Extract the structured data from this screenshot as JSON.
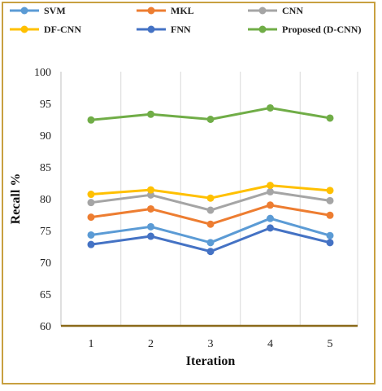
{
  "chart_data": {
    "type": "line",
    "title": "",
    "xlabel": "Iteration",
    "ylabel": "Recall %",
    "x": [
      1,
      2,
      3,
      4,
      5
    ],
    "ylim": [
      60,
      100
    ],
    "yticks": [
      60,
      65,
      70,
      75,
      80,
      85,
      90,
      95,
      100
    ],
    "grid": "vertical",
    "legend_position": "top",
    "series": [
      {
        "name": "SVM",
        "color": "#5b9bd5",
        "values": [
          74.3,
          75.6,
          73.1,
          76.9,
          74.2
        ]
      },
      {
        "name": "MKL",
        "color": "#ed7d31",
        "values": [
          77.1,
          78.4,
          76.0,
          79.0,
          77.4
        ]
      },
      {
        "name": "CNN",
        "color": "#a5a5a5",
        "values": [
          79.4,
          80.6,
          78.2,
          81.1,
          79.7
        ]
      },
      {
        "name": "DF-CNN",
        "color": "#ffc000",
        "values": [
          80.7,
          81.4,
          80.1,
          82.1,
          81.3
        ]
      },
      {
        "name": "FNN",
        "color": "#4472c4",
        "values": [
          72.8,
          74.1,
          71.7,
          75.4,
          73.1
        ]
      },
      {
        "name": "Proposed (D-CNN)",
        "color": "#70ad47",
        "values": [
          92.4,
          93.3,
          92.5,
          94.3,
          92.7
        ]
      }
    ]
  }
}
